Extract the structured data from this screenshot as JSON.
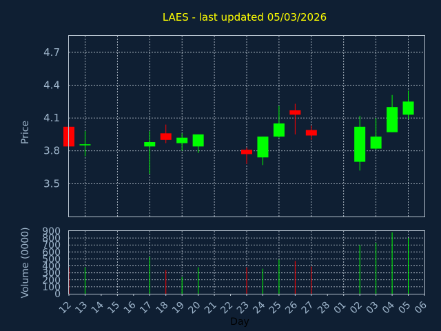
{
  "chart_data": {
    "type": "candlestick",
    "title": "LAES - last updated 05/03/2026",
    "xlabel": "Day",
    "x_ticks": [
      "12",
      "13",
      "14",
      "15",
      "16",
      "17",
      "18",
      "19",
      "20",
      "21",
      "22",
      "23",
      "24",
      "25",
      "26",
      "27",
      "28",
      "01",
      "02",
      "03",
      "04",
      "05",
      "06"
    ],
    "price_panel": {
      "ylabel": "Price",
      "ylim": [
        3.2,
        4.85
      ],
      "y_ticks": [
        "3.5",
        "3.8",
        "4.1",
        "4.4",
        "4.7"
      ],
      "grid": true
    },
    "volume_panel": {
      "ylabel": "Volume (0000)",
      "ylim": [
        0,
        900
      ],
      "y_ticks": [
        "0",
        "100",
        "200",
        "300",
        "400",
        "500",
        "600",
        "700",
        "800",
        "900"
      ],
      "grid": true
    },
    "candles": [
      {
        "day": "12",
        "open": 4.02,
        "high": 4.02,
        "low": 3.84,
        "close": 3.84,
        "volume": 380
      },
      {
        "day": "13",
        "open": 3.85,
        "high": 3.98,
        "low": 3.75,
        "close": 3.86,
        "volume": 380
      },
      {
        "day": "17",
        "open": 3.84,
        "high": 3.98,
        "low": 3.59,
        "close": 3.88,
        "volume": 530
      },
      {
        "day": "18",
        "open": 3.96,
        "high": 4.04,
        "low": 3.87,
        "close": 3.9,
        "volume": 340
      },
      {
        "day": "19",
        "open": 3.87,
        "high": 3.96,
        "low": 3.8,
        "close": 3.92,
        "volume": 240
      },
      {
        "day": "20",
        "open": 3.84,
        "high": 3.95,
        "low": 3.78,
        "close": 3.95,
        "volume": 380
      },
      {
        "day": "23",
        "open": 3.81,
        "high": 3.83,
        "low": 3.68,
        "close": 3.77,
        "volume": 380
      },
      {
        "day": "24",
        "open": 3.74,
        "high": 3.93,
        "low": 3.67,
        "close": 3.93,
        "volume": 360
      },
      {
        "day": "25",
        "open": 3.93,
        "high": 4.21,
        "low": 3.92,
        "close": 4.05,
        "volume": 490
      },
      {
        "day": "26",
        "open": 4.17,
        "high": 4.23,
        "low": 3.95,
        "close": 4.13,
        "volume": 470
      },
      {
        "day": "27",
        "open": 3.99,
        "high": 4.03,
        "low": 3.9,
        "close": 3.94,
        "volume": 390
      },
      {
        "day": "02",
        "open": 3.7,
        "high": 4.12,
        "low": 3.62,
        "close": 4.02,
        "volume": 700
      },
      {
        "day": "03",
        "open": 3.82,
        "high": 4.1,
        "low": 3.81,
        "close": 3.93,
        "volume": 730
      },
      {
        "day": "04",
        "open": 3.97,
        "high": 4.31,
        "low": 3.97,
        "close": 4.2,
        "volume": 880
      },
      {
        "day": "05",
        "open": 4.13,
        "high": 4.35,
        "low": 4.09,
        "close": 4.25,
        "volume": 800
      }
    ],
    "colors": {
      "background": "#0f1f33",
      "up": "#00ff00",
      "down": "#ff0000",
      "title": "#ffff00",
      "axis_text": "#9fb6cc",
      "grid": "#c8d2dc"
    }
  }
}
